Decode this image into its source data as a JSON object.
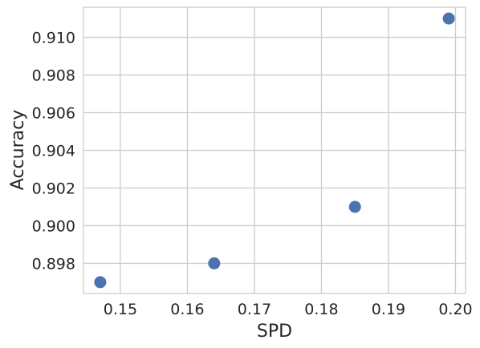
{
  "chart_data": {
    "type": "scatter",
    "title": "",
    "xlabel": "SPD",
    "ylabel": "Accuracy",
    "xlim": [
      0.1445,
      0.2015
    ],
    "ylim": [
      0.8964,
      0.9116
    ],
    "xticks": [
      0.15,
      0.16,
      0.17,
      0.18,
      0.19,
      0.2
    ],
    "xtick_labels": [
      "0.15",
      "0.16",
      "0.17",
      "0.18",
      "0.19",
      "0.20"
    ],
    "yticks": [
      0.898,
      0.9,
      0.902,
      0.904,
      0.906,
      0.908,
      0.91
    ],
    "ytick_labels": [
      "0.898",
      "0.900",
      "0.902",
      "0.904",
      "0.906",
      "0.908",
      "0.910"
    ],
    "grid": true,
    "point_color": "#4c72b0",
    "points": [
      {
        "x": 0.147,
        "y": 0.897
      },
      {
        "x": 0.164,
        "y": 0.898
      },
      {
        "x": 0.185,
        "y": 0.901
      },
      {
        "x": 0.199,
        "y": 0.911
      }
    ]
  }
}
